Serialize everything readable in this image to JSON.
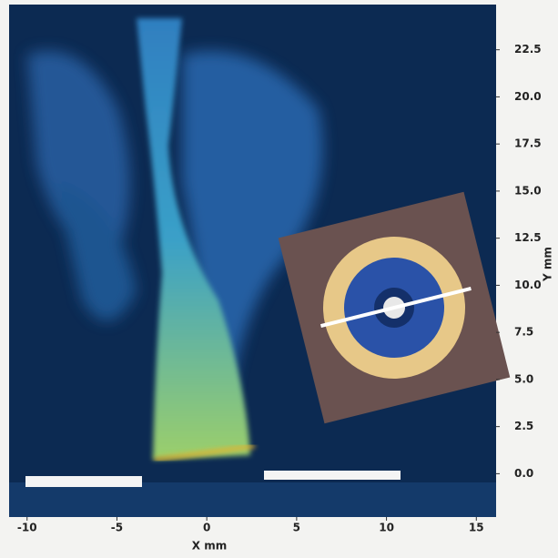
{
  "chart_data": {
    "type": "image",
    "xlabel": "X mm",
    "ylabel": "Y mm",
    "xlim": [
      -11,
      16.1
    ],
    "ylim": [
      -2.3,
      24.9
    ],
    "xticks": [
      -10,
      -5,
      0,
      5,
      10,
      15
    ],
    "yticks": [
      {
        "value": 0,
        "label": "0.0"
      },
      2.5,
      {
        "value": 5,
        "label": "5.0"
      },
      7.5,
      {
        "value": 10,
        "label": "10.0"
      },
      12.5,
      {
        "value": 15,
        "label": "15.0"
      },
      17.5,
      {
        "value": 20,
        "label": "20.0"
      },
      22.5
    ]
  }
}
